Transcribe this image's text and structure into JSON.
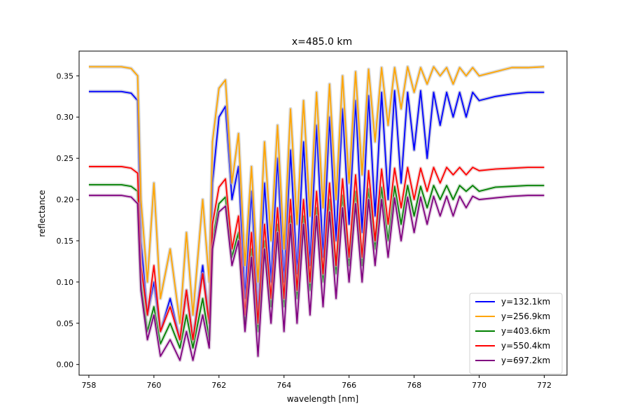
{
  "chart_data": {
    "type": "line",
    "title": "x=485.0 km",
    "xlabel": "wavelength [nm]",
    "ylabel": "reflectance",
    "xlim": [
      757.7,
      772.7
    ],
    "ylim": [
      -0.013,
      0.38
    ],
    "xticks": [
      758,
      760,
      762,
      764,
      766,
      768,
      770,
      772
    ],
    "yticks": [
      0.0,
      0.05,
      0.1,
      0.15,
      0.2,
      0.25,
      0.3,
      0.35
    ],
    "ytick_labels": [
      "0.00",
      "0.05",
      "0.10",
      "0.15",
      "0.20",
      "0.25",
      "0.30",
      "0.35"
    ],
    "grid": false,
    "legend_position": "lower-right",
    "series": [
      {
        "name": "y=132.1km",
        "color": "#0000ff",
        "x": [
          758.0,
          759.0,
          759.3,
          759.5,
          759.6,
          759.8,
          760.0,
          760.2,
          760.5,
          760.8,
          761.0,
          761.2,
          761.5,
          761.7,
          761.8,
          762.0,
          762.2,
          762.4,
          762.6,
          762.8,
          763.0,
          763.2,
          763.4,
          763.6,
          763.8,
          764.0,
          764.2,
          764.4,
          764.6,
          764.8,
          765.0,
          765.2,
          765.4,
          765.6,
          765.8,
          766.0,
          766.2,
          766.4,
          766.6,
          766.8,
          767.0,
          767.2,
          767.4,
          767.6,
          767.8,
          768.0,
          768.2,
          768.4,
          768.6,
          768.8,
          769.0,
          769.2,
          769.4,
          769.6,
          769.8,
          770.0,
          770.5,
          771.0,
          771.5,
          772.0
        ],
        "y": [
          0.331,
          0.331,
          0.329,
          0.32,
          0.15,
          0.06,
          0.1,
          0.04,
          0.08,
          0.03,
          0.09,
          0.03,
          0.12,
          0.05,
          0.22,
          0.3,
          0.313,
          0.2,
          0.24,
          0.08,
          0.21,
          0.06,
          0.22,
          0.1,
          0.25,
          0.1,
          0.26,
          0.11,
          0.27,
          0.12,
          0.29,
          0.13,
          0.3,
          0.15,
          0.31,
          0.17,
          0.32,
          0.16,
          0.326,
          0.18,
          0.33,
          0.2,
          0.332,
          0.22,
          0.33,
          0.26,
          0.332,
          0.25,
          0.33,
          0.29,
          0.33,
          0.3,
          0.33,
          0.3,
          0.33,
          0.32,
          0.325,
          0.328,
          0.33,
          0.33
        ],
        "band_color": "#9aa0c8"
      },
      {
        "name": "y=256.9km",
        "color": "#ffa500",
        "x": [
          758.0,
          759.0,
          759.3,
          759.5,
          759.6,
          759.8,
          760.0,
          760.2,
          760.5,
          760.8,
          761.0,
          761.2,
          761.5,
          761.7,
          761.8,
          762.0,
          762.2,
          762.4,
          762.6,
          762.8,
          763.0,
          763.2,
          763.4,
          763.6,
          763.8,
          764.0,
          764.2,
          764.4,
          764.6,
          764.8,
          765.0,
          765.2,
          765.4,
          765.6,
          765.8,
          766.0,
          766.2,
          766.4,
          766.6,
          766.8,
          767.0,
          767.2,
          767.4,
          767.6,
          767.8,
          768.0,
          768.2,
          768.4,
          768.6,
          768.8,
          769.0,
          769.2,
          769.4,
          769.6,
          769.8,
          770.0,
          770.5,
          771.0,
          771.5,
          772.0
        ],
        "y": [
          0.361,
          0.361,
          0.359,
          0.35,
          0.2,
          0.1,
          0.22,
          0.08,
          0.14,
          0.05,
          0.16,
          0.06,
          0.2,
          0.1,
          0.27,
          0.335,
          0.345,
          0.22,
          0.28,
          0.12,
          0.24,
          0.1,
          0.27,
          0.15,
          0.29,
          0.14,
          0.31,
          0.17,
          0.32,
          0.18,
          0.33,
          0.19,
          0.34,
          0.2,
          0.35,
          0.22,
          0.355,
          0.23,
          0.358,
          0.27,
          0.36,
          0.29,
          0.36,
          0.31,
          0.361,
          0.33,
          0.36,
          0.34,
          0.361,
          0.35,
          0.36,
          0.34,
          0.36,
          0.35,
          0.36,
          0.35,
          0.355,
          0.36,
          0.36,
          0.361
        ],
        "band_color": "#bcbcbc"
      },
      {
        "name": "y=403.6km",
        "color": "#008000",
        "x": [
          758.0,
          759.0,
          759.3,
          759.5,
          759.6,
          759.8,
          760.0,
          760.2,
          760.5,
          760.8,
          761.0,
          761.2,
          761.5,
          761.7,
          761.8,
          762.0,
          762.2,
          762.4,
          762.6,
          762.8,
          763.0,
          763.2,
          763.4,
          763.6,
          763.8,
          764.0,
          764.2,
          764.4,
          764.6,
          764.8,
          765.0,
          765.2,
          765.4,
          765.6,
          765.8,
          766.0,
          766.2,
          766.4,
          766.6,
          766.8,
          767.0,
          767.2,
          767.4,
          767.6,
          767.8,
          768.0,
          768.2,
          768.4,
          768.6,
          768.8,
          769.0,
          769.2,
          769.4,
          769.6,
          769.8,
          770.0,
          770.5,
          771.0,
          771.5,
          772.0
        ],
        "y": [
          0.218,
          0.218,
          0.216,
          0.21,
          0.1,
          0.04,
          0.07,
          0.025,
          0.05,
          0.02,
          0.06,
          0.02,
          0.08,
          0.03,
          0.15,
          0.195,
          0.203,
          0.13,
          0.16,
          0.05,
          0.14,
          0.04,
          0.15,
          0.07,
          0.17,
          0.07,
          0.18,
          0.08,
          0.18,
          0.09,
          0.19,
          0.1,
          0.2,
          0.11,
          0.205,
          0.12,
          0.21,
          0.12,
          0.213,
          0.14,
          0.215,
          0.15,
          0.216,
          0.17,
          0.217,
          0.18,
          0.216,
          0.19,
          0.217,
          0.2,
          0.217,
          0.2,
          0.217,
          0.21,
          0.217,
          0.21,
          0.215,
          0.216,
          0.217,
          0.217
        ],
        "band_color": "#a8c8a8"
      },
      {
        "name": "y=550.4km",
        "color": "#ff0000",
        "x": [
          758.0,
          759.0,
          759.3,
          759.5,
          759.6,
          759.8,
          760.0,
          760.2,
          760.5,
          760.8,
          761.0,
          761.2,
          761.5,
          761.7,
          761.8,
          762.0,
          762.2,
          762.4,
          762.6,
          762.8,
          763.0,
          763.2,
          763.4,
          763.6,
          763.8,
          764.0,
          764.2,
          764.4,
          764.6,
          764.8,
          765.0,
          765.2,
          765.4,
          765.6,
          765.8,
          766.0,
          766.2,
          766.4,
          766.6,
          766.8,
          767.0,
          767.2,
          767.4,
          767.6,
          767.8,
          768.0,
          768.2,
          768.4,
          768.6,
          768.8,
          769.0,
          769.2,
          769.4,
          769.6,
          769.8,
          770.0,
          770.5,
          771.0,
          771.5,
          772.0
        ],
        "y": [
          0.24,
          0.24,
          0.238,
          0.232,
          0.12,
          0.06,
          0.12,
          0.04,
          0.07,
          0.03,
          0.09,
          0.03,
          0.11,
          0.05,
          0.17,
          0.215,
          0.225,
          0.14,
          0.18,
          0.06,
          0.16,
          0.05,
          0.17,
          0.08,
          0.19,
          0.08,
          0.2,
          0.09,
          0.2,
          0.1,
          0.21,
          0.11,
          0.22,
          0.12,
          0.225,
          0.13,
          0.23,
          0.13,
          0.235,
          0.15,
          0.237,
          0.17,
          0.238,
          0.19,
          0.239,
          0.2,
          0.238,
          0.21,
          0.239,
          0.22,
          0.239,
          0.23,
          0.239,
          0.23,
          0.239,
          0.235,
          0.237,
          0.238,
          0.239,
          0.239
        ],
        "band_color": "#e0b0b0"
      },
      {
        "name": "y=697.2km",
        "color": "#800080",
        "x": [
          758.0,
          759.0,
          759.3,
          759.5,
          759.6,
          759.8,
          760.0,
          760.2,
          760.5,
          760.8,
          761.0,
          761.2,
          761.5,
          761.7,
          761.8,
          762.0,
          762.2,
          762.4,
          762.6,
          762.8,
          763.0,
          763.2,
          763.4,
          763.6,
          763.8,
          764.0,
          764.2,
          764.4,
          764.6,
          764.8,
          765.0,
          765.2,
          765.4,
          765.6,
          765.8,
          766.0,
          766.2,
          766.4,
          766.6,
          766.8,
          767.0,
          767.2,
          767.4,
          767.6,
          767.8,
          768.0,
          768.2,
          768.4,
          768.6,
          768.8,
          769.0,
          769.2,
          769.4,
          769.6,
          769.8,
          770.0,
          770.5,
          771.0,
          771.5,
          772.0
        ],
        "y": [
          0.205,
          0.205,
          0.203,
          0.195,
          0.09,
          0.03,
          0.06,
          0.01,
          0.03,
          0.005,
          0.04,
          0.005,
          0.06,
          0.02,
          0.14,
          0.185,
          0.192,
          0.12,
          0.15,
          0.04,
          0.13,
          0.01,
          0.14,
          0.05,
          0.16,
          0.04,
          0.17,
          0.05,
          0.17,
          0.06,
          0.18,
          0.07,
          0.185,
          0.08,
          0.19,
          0.1,
          0.195,
          0.1,
          0.2,
          0.12,
          0.2,
          0.13,
          0.202,
          0.15,
          0.203,
          0.16,
          0.203,
          0.17,
          0.204,
          0.18,
          0.204,
          0.18,
          0.204,
          0.19,
          0.204,
          0.2,
          0.202,
          0.204,
          0.205,
          0.205
        ],
        "band_color": "#c8a8c8"
      }
    ]
  }
}
